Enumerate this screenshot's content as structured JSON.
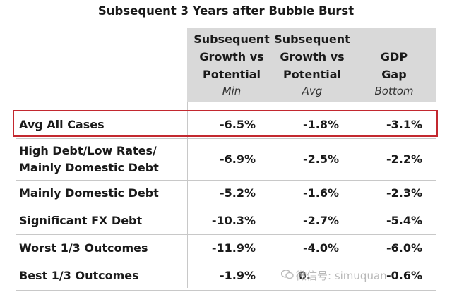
{
  "title": "Subsequent 3 Years after Bubble Burst",
  "columns": [
    {
      "lines": [
        "Subsequent",
        "Growth vs",
        "Potential"
      ],
      "sub": "Min"
    },
    {
      "lines": [
        "Subsequent",
        "Growth vs",
        "Potential"
      ],
      "sub": "Avg"
    },
    {
      "lines": [
        "GDP",
        "Gap"
      ],
      "sub": "Bottom"
    }
  ],
  "rows": [
    {
      "label": [
        "Avg All Cases"
      ],
      "values": [
        "-6.5%",
        "-1.8%",
        "-3.1%"
      ],
      "highlighted": true
    },
    {
      "label": [
        "High Debt/Low Rates/",
        "Mainly Domestic Debt"
      ],
      "values": [
        "-6.9%",
        "-2.5%",
        "-2.2%"
      ]
    },
    {
      "label": [
        "Mainly Domestic Debt"
      ],
      "values": [
        "-5.2%",
        "-1.6%",
        "-2.3%"
      ]
    },
    {
      "label": [
        "Significant FX Debt"
      ],
      "values": [
        "-10.3%",
        "-2.7%",
        "-5.4%"
      ]
    },
    {
      "label": [
        "Worst 1/3 Outcomes"
      ],
      "values": [
        "-11.9%",
        "-4.0%",
        "-6.0%"
      ]
    },
    {
      "label": [
        "Best 1/3 Outcomes"
      ],
      "values": [
        "-1.9%",
        "0.",
        "-0.6%"
      ]
    }
  ],
  "watermark": {
    "icon": "wechat-icon",
    "text": "微信号: simuquan"
  },
  "colors": {
    "highlight_border": "#c3282f",
    "header_band": "#d9d9d9"
  }
}
